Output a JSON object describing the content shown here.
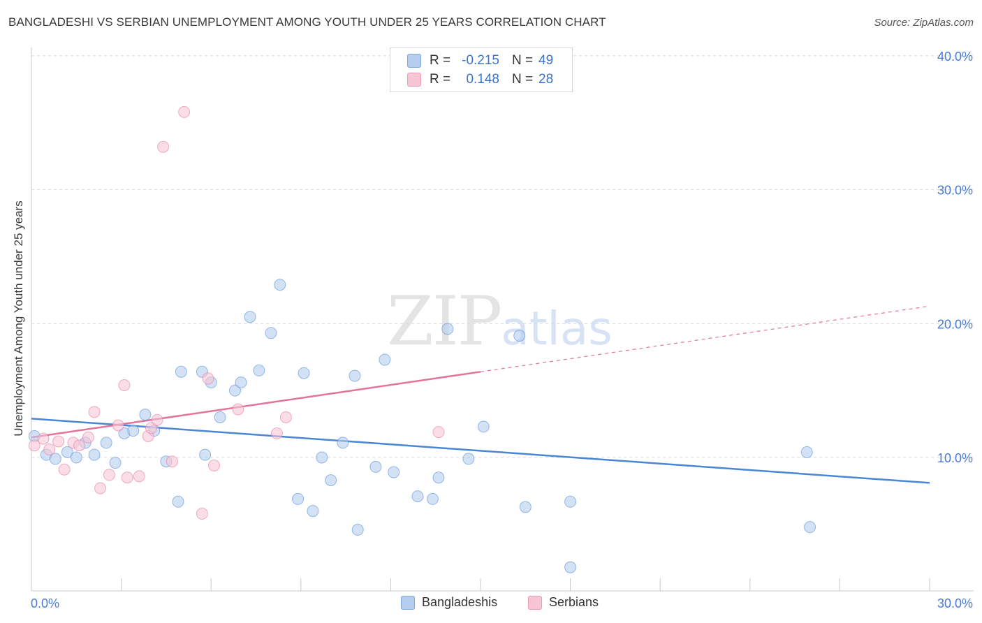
{
  "header": {
    "title": "BANGLADESHI VS SERBIAN UNEMPLOYMENT AMONG YOUTH UNDER 25 YEARS CORRELATION CHART",
    "source": "Source: ZipAtlas.com"
  },
  "watermark": {
    "zip": "ZIP",
    "atlas": "atlas"
  },
  "legend": {
    "rows": [
      {
        "r_label": "R =",
        "r_value": "-0.215",
        "n_label": "N =",
        "n_value": "49",
        "color": "#a9c6ee"
      },
      {
        "r_label": "R =",
        "r_value": "0.148",
        "n_label": "N =",
        "n_value": "28",
        "color": "#f4b6c9"
      }
    ]
  },
  "bottom_legend": {
    "items": [
      {
        "label": "Bangladeshis",
        "color": "#a9c6ee"
      },
      {
        "label": "Serbians",
        "color": "#f4b6c9"
      }
    ]
  },
  "chart_data": {
    "type": "scatter",
    "title": "BANGLADESHI VS SERBIAN UNEMPLOYMENT AMONG YOUTH UNDER 25 YEARS CORRELATION CHART",
    "xlabel": "",
    "ylabel": "Unemployment Among Youth under 25 years",
    "xlim": [
      0,
      30
    ],
    "ylim": [
      0,
      40
    ],
    "x_tick_labels": [
      "0.0%",
      "30.0%"
    ],
    "y_ticks": [
      10,
      20,
      30,
      40
    ],
    "y_tick_labels": [
      "10.0%",
      "20.0%",
      "30.0%",
      "40.0%"
    ],
    "grid": true,
    "series": [
      {
        "name": "Bangladeshis",
        "color": "#4a86d4",
        "fill": "#b5cdef",
        "trend": {
          "x": [
            0,
            30
          ],
          "y": [
            12.9,
            8.1
          ],
          "solid_to": 30
        },
        "points": [
          [
            0.1,
            11.6
          ],
          [
            0.5,
            10.2
          ],
          [
            0.8,
            9.9
          ],
          [
            1.2,
            10.4
          ],
          [
            1.5,
            10.0
          ],
          [
            1.8,
            11.1
          ],
          [
            2.1,
            10.2
          ],
          [
            2.5,
            11.1
          ],
          [
            2.8,
            9.6
          ],
          [
            3.1,
            11.8
          ],
          [
            3.4,
            12.0
          ],
          [
            3.8,
            13.2
          ],
          [
            4.1,
            12.0
          ],
          [
            4.5,
            9.7
          ],
          [
            4.9,
            6.7
          ],
          [
            5.0,
            16.4
          ],
          [
            5.7,
            16.4
          ],
          [
            5.8,
            10.2
          ],
          [
            6.0,
            15.6
          ],
          [
            6.3,
            13.0
          ],
          [
            6.8,
            15.0
          ],
          [
            7.0,
            15.6
          ],
          [
            7.3,
            20.5
          ],
          [
            7.6,
            16.5
          ],
          [
            8.0,
            19.3
          ],
          [
            8.3,
            22.9
          ],
          [
            8.9,
            6.9
          ],
          [
            9.1,
            16.3
          ],
          [
            9.4,
            6.0
          ],
          [
            9.7,
            10.0
          ],
          [
            10.0,
            8.3
          ],
          [
            10.4,
            11.1
          ],
          [
            10.8,
            16.1
          ],
          [
            10.9,
            4.6
          ],
          [
            11.5,
            9.3
          ],
          [
            11.8,
            17.3
          ],
          [
            12.1,
            8.9
          ],
          [
            12.9,
            7.1
          ],
          [
            13.4,
            6.9
          ],
          [
            13.6,
            8.5
          ],
          [
            13.9,
            19.6
          ],
          [
            14.6,
            9.9
          ],
          [
            15.1,
            12.3
          ],
          [
            16.3,
            19.1
          ],
          [
            16.5,
            6.3
          ],
          [
            18.0,
            6.7
          ],
          [
            18.0,
            1.8
          ],
          [
            25.9,
            10.4
          ],
          [
            26.0,
            4.8
          ]
        ]
      },
      {
        "name": "Serbians",
        "color": "#e2739a",
        "fill": "#f6c6d5",
        "trend": {
          "x": [
            0,
            30
          ],
          "y": [
            11.5,
            21.3
          ],
          "solid_to": 15
        },
        "points": [
          [
            0.1,
            10.9
          ],
          [
            0.4,
            11.4
          ],
          [
            0.6,
            10.6
          ],
          [
            0.9,
            11.2
          ],
          [
            1.1,
            9.1
          ],
          [
            1.4,
            11.1
          ],
          [
            1.6,
            10.9
          ],
          [
            1.9,
            11.5
          ],
          [
            2.1,
            13.4
          ],
          [
            2.3,
            7.7
          ],
          [
            2.6,
            8.7
          ],
          [
            2.9,
            12.4
          ],
          [
            3.1,
            15.4
          ],
          [
            3.2,
            8.5
          ],
          [
            3.6,
            8.6
          ],
          [
            3.9,
            11.6
          ],
          [
            4.0,
            12.2
          ],
          [
            4.2,
            12.8
          ],
          [
            4.4,
            33.2
          ],
          [
            4.7,
            9.7
          ],
          [
            5.1,
            35.8
          ],
          [
            5.7,
            5.8
          ],
          [
            5.9,
            15.9
          ],
          [
            6.1,
            9.4
          ],
          [
            6.9,
            13.6
          ],
          [
            8.2,
            11.8
          ],
          [
            8.5,
            13.0
          ],
          [
            13.6,
            11.9
          ]
        ]
      }
    ]
  }
}
